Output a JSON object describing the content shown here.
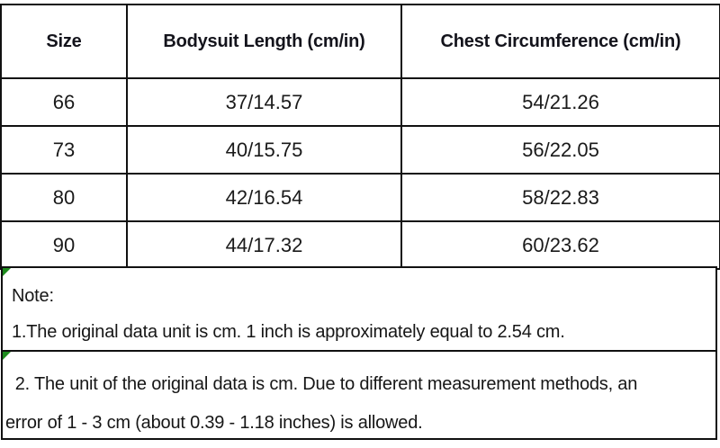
{
  "table": {
    "headers": [
      "Size",
      "Bodysuit Length (cm/in)",
      "Chest Circumference (cm/in)"
    ],
    "rows": [
      [
        "66",
        "37/14.57",
        "54/21.26"
      ],
      [
        "73",
        "40/15.75",
        "56/22.05"
      ],
      [
        "80",
        "42/16.54",
        "58/22.83"
      ],
      [
        "90",
        "44/17.32",
        "60/23.62"
      ]
    ]
  },
  "notes": {
    "note1_title": "Note:",
    "note1_body": "1.The original data unit is cm. 1 inch is approximately equal to 2.54 cm.",
    "note2_body": "  2. The unit of the original data is cm. Due to different measurement methods, an\nerror of 1 - 3 cm (about 0.39 - 1.18 inches) is allowed."
  },
  "colors": {
    "border": "#111111",
    "text": "#161616",
    "corner_triangle_green": "#1e8c1e",
    "background": "#ffffff"
  }
}
